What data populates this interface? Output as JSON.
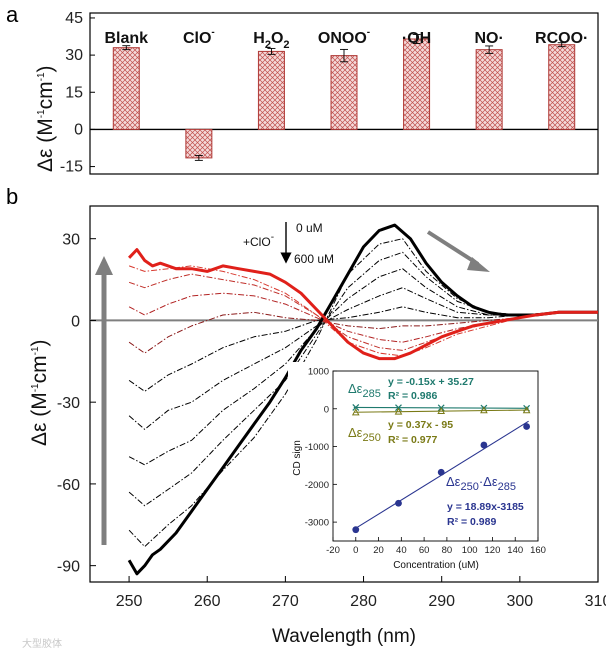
{
  "watermark": "大型胶体",
  "chart_data": [
    {
      "panel": "a",
      "type": "bar",
      "ylabel_main": "Δε (M",
      "ylabel_sup1": "-1",
      "ylabel_mid": "cm",
      "ylabel_sup2": "-1",
      "ylabel_end": ")",
      "ylim": [
        -18,
        47
      ],
      "yticks": [
        -15,
        0,
        15,
        30,
        45
      ],
      "ytick_labels": [
        "-15",
        "0",
        "15",
        "30",
        "45"
      ],
      "categories": [
        "Blank",
        "ClO",
        "H2O2",
        "ONOO",
        "·OH",
        "NO·",
        "RCOO·"
      ],
      "category_labels": [
        {
          "base": "Blank",
          "sub": "",
          "tail": "",
          "sup": ""
        },
        {
          "base": "ClO",
          "sub": "",
          "tail": "",
          "sup": "-"
        },
        {
          "base": "H",
          "sub": "2",
          "tail": "O",
          "sub2": "2",
          "sup": ""
        },
        {
          "base": "ONOO",
          "sub": "",
          "tail": "",
          "sup": "-"
        },
        {
          "base": "·OH",
          "sub": "",
          "tail": "",
          "sup": ""
        },
        {
          "base": "NO·",
          "sub": "",
          "tail": "",
          "sup": ""
        },
        {
          "base": "RCOO·",
          "sub": "",
          "tail": "",
          "sup": ""
        }
      ],
      "values": [
        33,
        -11.5,
        31.5,
        29.8,
        36.5,
        32.2,
        34.2
      ],
      "errors": [
        0.8,
        1.0,
        1.2,
        2.5,
        1.8,
        1.5,
        0.8
      ],
      "bar_color": "#c0504d"
    },
    {
      "panel": "b",
      "type": "line",
      "xlabel": "Wavelength (nm)",
      "ylabel_main": "Δε (M",
      "ylabel_sup1": "-1",
      "ylabel_mid": "cm",
      "ylabel_sup2": "-1",
      "ylabel_end": ")",
      "xlim": [
        245,
        310
      ],
      "ylim": [
        -96,
        42
      ],
      "xticks": [
        250,
        260,
        270,
        280,
        290,
        300,
        310
      ],
      "xtick_labels": [
        "250",
        "260",
        "270",
        "280",
        "290",
        "300",
        "310"
      ],
      "yticks": [
        -90,
        -60,
        -30,
        0,
        30
      ],
      "ytick_labels": [
        "-90",
        "-60",
        "-30",
        "0",
        "30"
      ],
      "annotations": {
        "reagent": "+ClO",
        "reagent_sup": "-",
        "conc_start": "0 uM",
        "conc_end": "600 uM"
      },
      "series": [
        {
          "name": "0 uM",
          "color": "#000000",
          "style": "solid",
          "width": 3,
          "x": [
            250,
            251,
            252,
            253,
            254,
            256,
            258,
            260,
            262,
            264,
            266,
            268,
            270,
            272,
            274,
            276,
            278,
            280,
            282,
            284,
            286,
            288,
            290,
            292,
            294,
            296,
            298,
            300,
            302,
            305,
            308,
            310
          ],
          "y": [
            -88,
            -93,
            -90,
            -86,
            -84,
            -78,
            -70,
            -62,
            -54,
            -46,
            -38,
            -30,
            -21,
            -11,
            -3,
            7,
            17,
            27,
            33,
            35,
            30,
            21,
            14,
            9,
            5,
            3,
            2,
            2,
            2,
            3,
            3,
            3
          ]
        },
        {
          "name": "intermediate",
          "color": "#000000",
          "style": "dashdot",
          "width": 1,
          "x": [
            250,
            252,
            255,
            258,
            262,
            266,
            270,
            274,
            278,
            282,
            285,
            288,
            292,
            296,
            300,
            305,
            310
          ],
          "y": [
            -77,
            -83,
            -75,
            -68,
            -55,
            -43,
            -27,
            -7,
            17,
            28,
            30,
            18,
            8,
            3,
            2,
            3,
            3
          ]
        },
        {
          "name": "intermediate",
          "color": "#000000",
          "style": "dashdot",
          "width": 1,
          "x": [
            250,
            252,
            255,
            258,
            262,
            266,
            270,
            274,
            278,
            282,
            285,
            288,
            292,
            296,
            300,
            305,
            310
          ],
          "y": [
            -63,
            -68,
            -62,
            -56,
            -44,
            -33,
            -22,
            -5,
            12,
            22,
            25,
            16,
            7,
            3,
            2,
            3,
            3
          ]
        },
        {
          "name": "intermediate",
          "color": "#000000",
          "style": "dashdot",
          "width": 1,
          "x": [
            250,
            252,
            255,
            258,
            262,
            266,
            270,
            274,
            278,
            282,
            285,
            288,
            292,
            296,
            300,
            305,
            310
          ],
          "y": [
            -50,
            -53,
            -48,
            -44,
            -33,
            -25,
            -16,
            -3,
            8,
            16,
            19,
            12,
            5,
            2,
            2,
            3,
            3
          ]
        },
        {
          "name": "intermediate",
          "color": "#000000",
          "style": "dashdot",
          "width": 1,
          "x": [
            250,
            252,
            255,
            258,
            262,
            266,
            270,
            274,
            278,
            282,
            285,
            288,
            292,
            296,
            300,
            305,
            310
          ],
          "y": [
            -35,
            -40,
            -33,
            -30,
            -22,
            -16,
            -10,
            -2,
            4,
            9,
            12,
            8,
            3,
            2,
            2,
            3,
            3
          ]
        },
        {
          "name": "intermediate",
          "color": "#000000",
          "style": "dashdot",
          "width": 1,
          "x": [
            250,
            252,
            255,
            258,
            262,
            266,
            270,
            274,
            278,
            282,
            285,
            288,
            292,
            296,
            300,
            305,
            310
          ],
          "y": [
            -22,
            -26,
            -20,
            -16,
            -10,
            -6,
            -4,
            0,
            1,
            3,
            5,
            3,
            1,
            1,
            2,
            3,
            3
          ]
        },
        {
          "name": "intermediate",
          "color": "#8b1a1a",
          "style": "dashdot",
          "width": 1,
          "x": [
            250,
            252,
            255,
            258,
            262,
            266,
            270,
            274,
            278,
            282,
            285,
            288,
            292,
            296,
            300,
            305,
            310
          ],
          "y": [
            -8,
            -12,
            -6,
            -2,
            2,
            3,
            1,
            0,
            -2,
            -3,
            -2,
            -2,
            -1,
            0,
            1,
            3,
            3
          ]
        },
        {
          "name": "intermediate",
          "color": "#b22222",
          "style": "dashdot",
          "width": 1,
          "x": [
            250,
            252,
            255,
            258,
            262,
            266,
            270,
            274,
            278,
            282,
            285,
            288,
            292,
            296,
            300,
            305,
            310
          ],
          "y": [
            5,
            2,
            6,
            9,
            10,
            9,
            6,
            1,
            -4,
            -7,
            -8,
            -6,
            -3,
            -1,
            1,
            3,
            3
          ]
        },
        {
          "name": "intermediate",
          "color": "#c0302a",
          "style": "dashdot",
          "width": 1,
          "x": [
            250,
            252,
            255,
            258,
            262,
            266,
            270,
            274,
            278,
            282,
            285,
            288,
            292,
            296,
            300,
            305,
            310
          ],
          "y": [
            14,
            12,
            15,
            17,
            15,
            13,
            9,
            2,
            -6,
            -10,
            -11,
            -8,
            -4,
            -1,
            1,
            3,
            3
          ]
        },
        {
          "name": "intermediate",
          "color": "#d83a30",
          "style": "dashdot",
          "width": 1,
          "x": [
            250,
            252,
            255,
            258,
            262,
            266,
            270,
            274,
            278,
            282,
            285,
            288,
            292,
            296,
            300,
            305,
            310
          ],
          "y": [
            20,
            18,
            19,
            20,
            18,
            15,
            10,
            2,
            -8,
            -12,
            -13,
            -10,
            -5,
            -2,
            1,
            3,
            3
          ]
        },
        {
          "name": "600 uM",
          "color": "#e0201a",
          "style": "solid",
          "width": 3,
          "x": [
            250,
            251,
            252,
            253,
            254,
            256,
            258,
            260,
            262,
            264,
            266,
            268,
            270,
            272,
            274,
            276,
            278,
            280,
            282,
            284,
            286,
            288,
            290,
            292,
            294,
            296,
            298,
            300,
            302,
            305,
            308,
            310
          ],
          "y": [
            23,
            26,
            22,
            20,
            21,
            19,
            19,
            18,
            20,
            19,
            18,
            17,
            14,
            10,
            4,
            -2,
            -8,
            -12,
            -14,
            -14,
            -12,
            -9,
            -6,
            -4,
            -2,
            -1,
            0,
            1,
            2,
            3,
            3,
            3
          ]
        }
      ]
    },
    {
      "panel": "b-inset",
      "type": "scatter",
      "xlabel": "Concentration (uM)",
      "ylabel": "CD sign",
      "xlim": [
        -20,
        160
      ],
      "ylim": [
        -3500,
        1000
      ],
      "xticks": [
        -20,
        0,
        20,
        40,
        60,
        80,
        100,
        120,
        140,
        160
      ],
      "xtick_labels": [
        "-20",
        "0",
        "20",
        "40",
        "60",
        "80",
        "100",
        "120",
        "140",
        "160"
      ],
      "yticks": [
        1000,
        0,
        -1000,
        -2000,
        -3000
      ],
      "ytick_labels": [
        "1000",
        "0",
        "-1000",
        "-2000",
        "-3000"
      ],
      "x": [
        0,
        37.5,
        75,
        112.5,
        150
      ],
      "series": [
        {
          "name": "Δε285",
          "label_base": "Δε",
          "label_sub": "285",
          "color": "#1f7a6e",
          "marker": "x",
          "y": [
            35,
            30,
            25,
            18,
            12
          ],
          "fit": "y = -0.15x + 35.27",
          "r2": "R² = 0.986"
        },
        {
          "name": "Δε250",
          "label_base": "Δε",
          "label_sub": "250",
          "color": "#7a7a16",
          "marker": "triangle",
          "y": [
            -95,
            -75,
            -60,
            -40,
            -40
          ],
          "fit": "y = 0.37x - 95",
          "r2": "R² = 0.977"
        },
        {
          "name": "Δε250·Δε285",
          "label_base": "Δε",
          "label_sub": "250",
          "label_mid": "·Δε",
          "label_sub2": "285",
          "color": "#2a3590",
          "marker": "circle",
          "y": [
            -3200,
            -2500,
            -1680,
            -960,
            -470
          ],
          "fit": "y = 18.89x-3185",
          "r2": "R² = 0.989"
        }
      ]
    }
  ]
}
